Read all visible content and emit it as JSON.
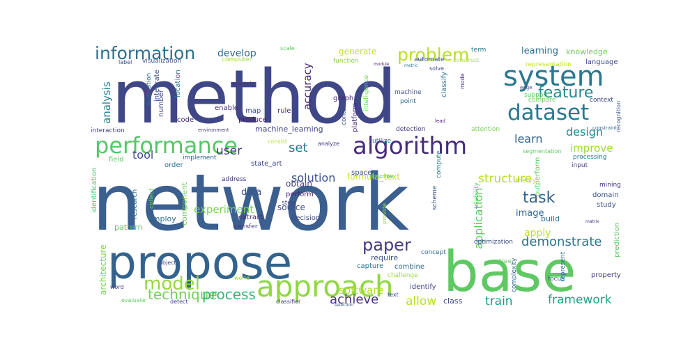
{
  "title": "",
  "words": [
    {
      "text": "network",
      "color": "#3b5f8e"
    },
    {
      "text": "method",
      "color": "#404787"
    },
    {
      "text": "base",
      "color": "#5ec962"
    },
    {
      "text": "propose",
      "color": "#33638d"
    },
    {
      "text": "approach",
      "color": "#8fd744"
    },
    {
      "text": "system",
      "color": "#2a788e"
    },
    {
      "text": "algorithm",
      "color": "#472c7a"
    },
    {
      "text": "performance",
      "color": "#55c667"
    },
    {
      "text": "dataset",
      "color": "#2a788e"
    },
    {
      "text": "information",
      "color": "#2d708e"
    },
    {
      "text": "problem",
      "color": "#b8de29"
    },
    {
      "text": "feature",
      "color": "#238a8d"
    },
    {
      "text": "paper",
      "color": "#443983"
    },
    {
      "text": "model",
      "color": "#95d840"
    },
    {
      "text": "task",
      "color": "#33638d"
    },
    {
      "text": "technique",
      "color": "#73d055"
    },
    {
      "text": "process",
      "color": "#35b779"
    },
    {
      "text": "achieve",
      "color": "#46327e"
    },
    {
      "text": "framework",
      "color": "#20a486"
    },
    {
      "text": "train",
      "color": "#1f968b"
    },
    {
      "text": "allow",
      "color": "#b8de29"
    },
    {
      "text": "demonstrate",
      "color": "#2c728e"
    },
    {
      "text": "application",
      "color": "#5ec962"
    },
    {
      "text": "structure",
      "color": "#b8de29"
    },
    {
      "text": "set",
      "color": "#2a788e"
    },
    {
      "text": "user",
      "color": "#443983"
    },
    {
      "text": "tool",
      "color": "#3e4a89"
    },
    {
      "text": "learn",
      "color": "#33638d"
    },
    {
      "text": "design",
      "color": "#238a8d"
    },
    {
      "text": "improve",
      "color": "#9fda3a"
    },
    {
      "text": "experiment",
      "color": "#7ad151"
    },
    {
      "text": "solution",
      "color": "#3b528b"
    },
    {
      "text": "data",
      "color": "#3b528b"
    },
    {
      "text": "image",
      "color": "#31688e"
    },
    {
      "text": "apply",
      "color": "#bddf26"
    },
    {
      "text": "develop",
      "color": "#31688e"
    },
    {
      "text": "learning",
      "color": "#2d708e"
    },
    {
      "text": "generate",
      "color": "#c2df23"
    },
    {
      "text": "accuracy",
      "color": "#482878"
    },
    {
      "text": "analysis",
      "color": "#287c8e"
    },
    {
      "text": "software",
      "color": "#aadc32"
    },
    {
      "text": "source",
      "color": "#3e4a89"
    },
    {
      "text": "formula_text",
      "color": "#c8e020"
    },
    {
      "text": "knowledge",
      "color": "#6ccd5a"
    },
    {
      "text": "language",
      "color": "#3e4c8a"
    },
    {
      "text": "machine_learning",
      "color": "#414487"
    },
    {
      "text": "state_art",
      "color": "#3f4889"
    },
    {
      "text": "domain",
      "color": "#3b528b"
    },
    {
      "text": "study",
      "color": "#39558c"
    },
    {
      "text": "mining",
      "color": "#46307e"
    },
    {
      "text": "build",
      "color": "#2f6c8e"
    },
    {
      "text": "obtain",
      "color": "#424086"
    },
    {
      "text": "perform",
      "color": "#4a1c6e"
    },
    {
      "text": "class",
      "color": "#3e4989"
    },
    {
      "text": "identify",
      "color": "#414487"
    },
    {
      "text": "require",
      "color": "#3b528b"
    },
    {
      "text": "combine",
      "color": "#31688e"
    },
    {
      "text": "capture",
      "color": "#2c728e"
    },
    {
      "text": "challenge",
      "color": "#a0da39"
    },
    {
      "text": "decision",
      "color": "#3e4989"
    },
    {
      "text": "transfer",
      "color": "#443a83"
    },
    {
      "text": "extract",
      "color": "#482576"
    },
    {
      "text": "component",
      "color": "#6ece58"
    },
    {
      "text": "employ",
      "color": "#2e6e8e"
    },
    {
      "text": "pattern",
      "color": "#5ec962"
    },
    {
      "text": "architecture",
      "color": "#7ad151"
    },
    {
      "text": "research",
      "color": "#2e6f8e"
    },
    {
      "text": "identification",
      "color": "#4ac16d"
    },
    {
      "text": "address",
      "color": "#443983"
    },
    {
      "text": "order",
      "color": "#2d708e"
    },
    {
      "text": "implement",
      "color": "#33638d"
    },
    {
      "text": "field",
      "color": "#5ec962"
    },
    {
      "text": "map",
      "color": "#3e4a89"
    },
    {
      "text": "rule",
      "color": "#472c7a"
    },
    {
      "text": "enable",
      "color": "#46307e"
    },
    {
      "text": "produce",
      "color": "#481b6d"
    },
    {
      "text": "code",
      "color": "#46327e"
    },
    {
      "text": "number",
      "color": "#414487"
    },
    {
      "text": "location",
      "color": "#2a788e"
    },
    {
      "text": "integrate",
      "color": "#3b528b"
    },
    {
      "text": "metric",
      "color": "#46337f"
    },
    {
      "text": "computer",
      "color": "#a2da37"
    },
    {
      "text": "graph",
      "color": "#482677"
    },
    {
      "text": "function",
      "color": "#89d548"
    },
    {
      "text": "intelligence",
      "color": "#6ece58"
    },
    {
      "text": "automate",
      "color": "#3b528b"
    },
    {
      "text": "construct",
      "color": "#a8db34"
    },
    {
      "text": "classify",
      "color": "#2c738e"
    },
    {
      "text": "machine",
      "color": "#3b528b"
    },
    {
      "text": "point",
      "color": "#2f6b8e"
    },
    {
      "text": "solve",
      "color": "#404588"
    },
    {
      "text": "detection",
      "color": "#433e85"
    },
    {
      "text": "attention",
      "color": "#7ad151"
    },
    {
      "text": "segmentation",
      "color": "#5cc863"
    },
    {
      "text": "compare",
      "color": "#6ccd5a"
    },
    {
      "text": "context",
      "color": "#3f4788"
    },
    {
      "text": "support",
      "color": "#5ec962"
    },
    {
      "text": "representation",
      "color": "#c5e021"
    },
    {
      "text": "term",
      "color": "#2a788e"
    },
    {
      "text": "scale",
      "color": "#5ec962"
    },
    {
      "text": "visualization",
      "color": "#3b528b"
    },
    {
      "text": "label",
      "color": "#3e4a89"
    },
    {
      "text": "evaluation",
      "color": "#2d708e"
    },
    {
      "text": "interaction",
      "color": "#404387"
    },
    {
      "text": "environment",
      "color": "#433e85"
    },
    {
      "text": "consist",
      "color": "#b5de2b"
    },
    {
      "text": "analyze",
      "color": "#443983"
    },
    {
      "text": "contain",
      "color": "#3b528b"
    },
    {
      "text": "platform",
      "color": "#482475"
    },
    {
      "text": "space",
      "color": "#3b528b"
    },
    {
      "text": "describe",
      "color": "#4ac16d"
    },
    {
      "text": "step",
      "color": "#414487"
    },
    {
      "text": "utilize",
      "color": "#2c728e"
    },
    {
      "text": "text",
      "color": "#3e4989"
    },
    {
      "text": "word",
      "color": "#433e85"
    },
    {
      "text": "world",
      "color": "#9bd93c"
    },
    {
      "text": "evaluate",
      "color": "#5ec962"
    },
    {
      "text": "detect",
      "color": "#3e4989"
    },
    {
      "text": "object",
      "color": "#3e4989"
    },
    {
      "text": "concept",
      "color": "#31688e"
    },
    {
      "text": "classifier",
      "color": "#433e85"
    },
    {
      "text": "selection",
      "color": "#39568c"
    },
    {
      "text": "optimization",
      "color": "#3e4a89"
    },
    {
      "text": "tree",
      "color": "#5ec962"
    },
    {
      "text": "complexity",
      "color": "#31688e"
    },
    {
      "text": "focus",
      "color": "#3b528b"
    },
    {
      "text": "represent",
      "color": "#2d708e"
    },
    {
      "text": "property",
      "color": "#443983"
    },
    {
      "text": "prediction",
      "color": "#5ec962"
    },
    {
      "text": "matrix",
      "color": "#46307e"
    },
    {
      "text": "outperform",
      "color": "#5ec962"
    },
    {
      "text": "input",
      "color": "#433e85"
    },
    {
      "text": "processing",
      "color": "#2a788e"
    },
    {
      "text": "theory",
      "color": "#b5de2b"
    },
    {
      "text": "recognition",
      "color": "#3b528b"
    },
    {
      "text": "constraint",
      "color": "#31688e"
    },
    {
      "text": "lead",
      "color": "#481b6d"
    },
    {
      "text": "mode",
      "color": "#46307e"
    },
    {
      "text": "edge",
      "color": "#3b528b"
    },
    {
      "text": "module",
      "color": "#482173"
    },
    {
      "text": "metric",
      "color": "#2a788e"
    },
    {
      "text": "scheme",
      "color": "#3b528b"
    },
    {
      "text": "compute",
      "color": "#2a788e"
    },
    {
      "text": "provide",
      "color": "#8fd744"
    },
    {
      "text": "collect",
      "color": "#6ccd5a"
    },
    {
      "text": "usability",
      "color": "#5ec962"
    }
  ]
}
